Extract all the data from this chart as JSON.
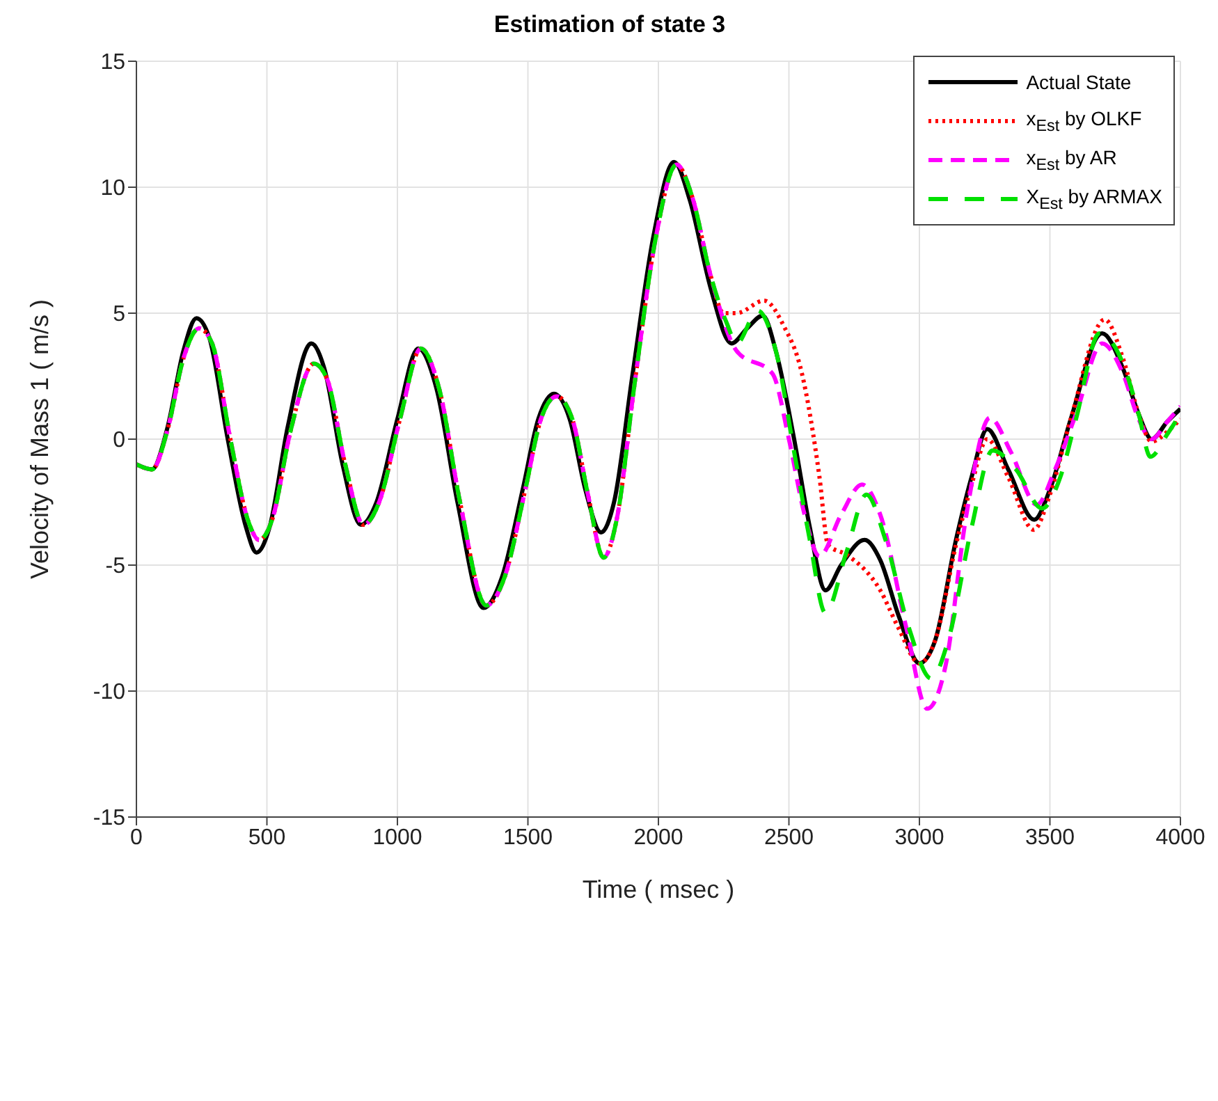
{
  "chart_data": {
    "type": "line",
    "title": "Estimation of state 3",
    "xlabel": "Time ( msec )",
    "ylabel": "Velocity of Mass 1 ( m/s )",
    "xlim": [
      0,
      4000
    ],
    "xticks": [
      0,
      500,
      1000,
      1500,
      2000,
      2500,
      3000,
      3500,
      4000
    ],
    "ylim": [
      -15,
      15
    ],
    "yticks": [
      -15,
      -10,
      -5,
      0,
      5,
      10,
      15
    ],
    "grid": true,
    "legend": "top right",
    "marker": "none",
    "series": [
      {
        "name": "Actual State",
        "color": "#000000",
        "line_style": "solid",
        "x": [
          0,
          60,
          120,
          180,
          230,
          280,
          350,
          420,
          460,
          510,
          580,
          670,
          720,
          790,
          860,
          920,
          1000,
          1080,
          1150,
          1230,
          1330,
          1400,
          1480,
          1540,
          1600,
          1660,
          1720,
          1780,
          1830,
          1900,
          1980,
          2060,
          2120,
          2200,
          2280,
          2340,
          2400,
          2450,
          2520,
          2580,
          2640,
          2700,
          2790,
          2850,
          2920,
          3000,
          3060,
          3140,
          3200,
          3260,
          3340,
          3440,
          3500,
          3580,
          3700,
          3780,
          3840,
          3890,
          3950,
          4000
        ],
        "values": [
          -1,
          -1.2,
          0.5,
          3.5,
          4.8,
          4,
          0,
          -3.5,
          -4.5,
          -3.5,
          0.5,
          3.8,
          2.8,
          -1,
          -3.4,
          -2.5,
          0.8,
          3.6,
          2,
          -2.5,
          -6.7,
          -5.5,
          -2,
          0.8,
          1.8,
          0.8,
          -2,
          -3.7,
          -2.5,
          2.5,
          8,
          11,
          9.5,
          6,
          3.8,
          4.4,
          4.9,
          3.5,
          0,
          -3.5,
          -6,
          -5,
          -4,
          -4.8,
          -7,
          -8.9,
          -8,
          -4,
          -1.5,
          0.4,
          -1.2,
          -3.2,
          -2,
          0.8,
          4.2,
          2.8,
          1,
          0,
          0.7,
          1.2
        ]
      },
      {
        "name": "x$_{Est}$ by OLKF",
        "color": "#ff0000",
        "line_style": "dotted",
        "x": [
          0,
          60,
          120,
          180,
          240,
          290,
          360,
          430,
          470,
          520,
          590,
          680,
          730,
          800,
          870,
          930,
          1010,
          1090,
          1160,
          1240,
          1340,
          1410,
          1490,
          1550,
          1610,
          1670,
          1730,
          1790,
          1840,
          1910,
          1990,
          2070,
          2130,
          2200,
          2250,
          2300,
          2405,
          2480,
          2550,
          2617,
          2650,
          2723,
          2850,
          2920,
          3000,
          3060,
          3140,
          3200,
          3260,
          3340,
          3438,
          3500,
          3580,
          3710,
          3780,
          3840,
          3890,
          3950,
          4000
        ],
        "values": [
          -1,
          -1.2,
          0.4,
          3.2,
          4.4,
          3.8,
          0,
          -3.3,
          -4,
          -3.2,
          0.3,
          3,
          2.4,
          -1,
          -3.4,
          -2.5,
          0.8,
          3.6,
          2,
          -2.5,
          -6.6,
          -5.5,
          -2,
          0.8,
          1.7,
          0.8,
          -2.2,
          -4.7,
          -3.2,
          2.3,
          8,
          10.9,
          9.6,
          6.5,
          5,
          5,
          5.5,
          4.5,
          2.6,
          -1.5,
          -4.2,
          -4.6,
          -6,
          -7.5,
          -8.9,
          -8,
          -4.2,
          -1.8,
          0,
          -1.5,
          -3.6,
          -2.2,
          0.8,
          4.75,
          3.2,
          1,
          -0.1,
          0.3,
          0.8
        ]
      },
      {
        "name": "x$_{Est}$ by AR",
        "color": "#ff00ff",
        "line_style": "dashed",
        "x": [
          0,
          60,
          120,
          180,
          240,
          290,
          360,
          430,
          470,
          520,
          590,
          680,
          730,
          800,
          870,
          930,
          1010,
          1090,
          1160,
          1240,
          1340,
          1410,
          1490,
          1550,
          1610,
          1670,
          1730,
          1790,
          1840,
          1910,
          1990,
          2070,
          2130,
          2200,
          2300,
          2437,
          2500,
          2560,
          2617,
          2700,
          2780,
          2850,
          2950,
          3030,
          3100,
          3180,
          3270,
          3350,
          3450,
          3520,
          3600,
          3700,
          3780,
          3840,
          3890,
          3950,
          4000
        ],
        "values": [
          -1,
          -1.2,
          0.4,
          3.2,
          4.4,
          3.8,
          0,
          -3.3,
          -4,
          -3.2,
          0.3,
          3,
          2.4,
          -1,
          -3.4,
          -2.5,
          0.8,
          3.6,
          2,
          -2.5,
          -6.6,
          -5.5,
          -2,
          0.8,
          1.7,
          0.8,
          -2.2,
          -4.7,
          -3.2,
          2.3,
          8,
          10.9,
          9.6,
          6.5,
          3.5,
          2.6,
          0,
          -3,
          -4.65,
          -3,
          -1.8,
          -3,
          -7.5,
          -10.7,
          -9,
          -3,
          0.85,
          -0.5,
          -2.6,
          -1.2,
          1,
          3.8,
          2.6,
          0.8,
          0,
          0.7,
          1.3
        ]
      },
      {
        "name": "X$_{Est}$ by ARMAX",
        "color": "#00e000",
        "line_style": "dashed",
        "x": [
          0,
          60,
          120,
          180,
          240,
          290,
          360,
          430,
          470,
          520,
          590,
          680,
          730,
          800,
          870,
          930,
          1010,
          1090,
          1160,
          1240,
          1340,
          1410,
          1490,
          1550,
          1610,
          1670,
          1730,
          1790,
          1840,
          1910,
          1990,
          2070,
          2130,
          2200,
          2262,
          2300,
          2380,
          2450,
          2520,
          2580,
          2640,
          2720,
          2797,
          2870,
          2960,
          3045,
          3110,
          3200,
          3280,
          3370,
          3470,
          3540,
          3600,
          3690,
          3780,
          3840,
          3885,
          3950,
          4000
        ],
        "values": [
          -1,
          -1.2,
          0.4,
          3.2,
          4.4,
          3.8,
          0,
          -3.3,
          -4,
          -3.2,
          0.3,
          3,
          2.4,
          -1,
          -3.4,
          -2.5,
          0.8,
          3.6,
          2,
          -2.5,
          -6.6,
          -5.5,
          -2,
          0.8,
          1.7,
          0.8,
          -2.2,
          -4.7,
          -3.2,
          2.3,
          8,
          10.9,
          9.6,
          6.5,
          4.6,
          3.8,
          5.1,
          3.5,
          -0.5,
          -4,
          -6.9,
          -4.5,
          -2.2,
          -4,
          -7.5,
          -9.5,
          -8,
          -3.5,
          -0.45,
          -1.2,
          -2.75,
          -1.5,
          0.8,
          4.2,
          3,
          1,
          -0.7,
          0.2,
          1
        ]
      }
    ]
  }
}
